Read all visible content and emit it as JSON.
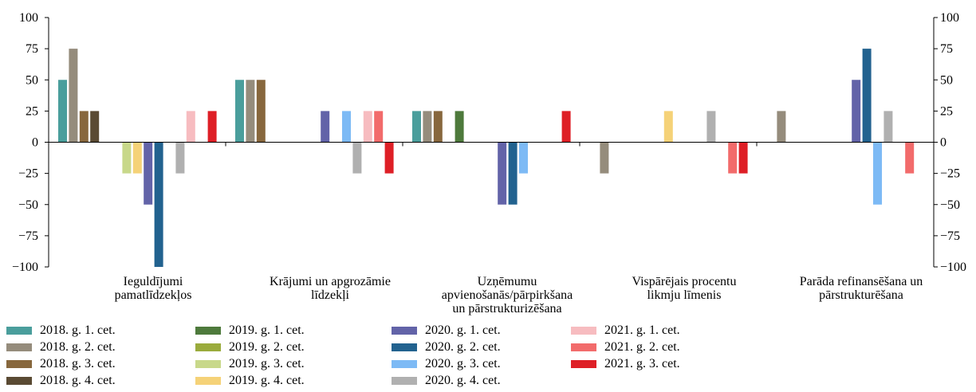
{
  "chart_data": {
    "type": "bar",
    "title": "",
    "xlabel": "",
    "ylabel": "",
    "ylim": [
      -100,
      100
    ],
    "yticks": [
      100,
      75,
      50,
      25,
      0,
      -25,
      -50,
      -75,
      -100
    ],
    "ytick_labels": [
      "100",
      "75",
      "50",
      "25",
      "0",
      "−25",
      "−50",
      "−75",
      "−100"
    ],
    "right_axis": true,
    "grid": false,
    "legend_position": "bottom",
    "categories": [
      [
        "Ieguldījumi",
        "pamatlīdzekļos"
      ],
      [
        "Krājumi un apgrozāmie",
        "līdzekļi"
      ],
      [
        "Uzņēmumu",
        "apvienošanās/pārpirkšana",
        "un pārstrukturizēšana"
      ],
      [
        "Vispārējais procentu",
        "likmju līmenis"
      ],
      [
        "Parāda refinansēšana un",
        "pārstrukturēšana"
      ]
    ],
    "series": [
      {
        "name": "2018. g. 1. cet.",
        "color": "#4a9e9c",
        "values": [
          50,
          50,
          25,
          0,
          0
        ]
      },
      {
        "name": "2018. g. 2. cet.",
        "color": "#958c7c",
        "values": [
          75,
          50,
          25,
          -25,
          25
        ]
      },
      {
        "name": "2018. g. 3. cet.",
        "color": "#87673d",
        "values": [
          25,
          50,
          25,
          0,
          0
        ]
      },
      {
        "name": "2018. g. 4. cet.",
        "color": "#5a4a33",
        "values": [
          25,
          0,
          0,
          0,
          0
        ]
      },
      {
        "name": "2019. g. 1. cet.",
        "color": "#4e7a3c",
        "values": [
          0,
          0,
          25,
          0,
          0
        ]
      },
      {
        "name": "2019. g. 2. cet.",
        "color": "#9aab3c",
        "values": [
          0,
          0,
          0,
          0,
          0
        ]
      },
      {
        "name": "2019. g. 3. cet.",
        "color": "#c8d88a",
        "values": [
          -25,
          0,
          0,
          0,
          0
        ]
      },
      {
        "name": "2019. g. 4. cet.",
        "color": "#f5d278",
        "values": [
          -25,
          0,
          0,
          25,
          0
        ]
      },
      {
        "name": "2020. g. 1. cet.",
        "color": "#6263a8",
        "values": [
          -50,
          25,
          -50,
          0,
          50
        ]
      },
      {
        "name": "2020. g. 2. cet.",
        "color": "#22628f",
        "values": [
          -100,
          0,
          -50,
          0,
          75
        ]
      },
      {
        "name": "2020. g. 3. cet.",
        "color": "#7dbaf5",
        "values": [
          0,
          25,
          -25,
          0,
          -50
        ]
      },
      {
        "name": "2020. g. 4. cet.",
        "color": "#b0b0b0",
        "values": [
          -25,
          -25,
          0,
          25,
          25
        ]
      },
      {
        "name": "2021. g. 1. cet.",
        "color": "#f7bcc0",
        "values": [
          25,
          25,
          0,
          0,
          0
        ]
      },
      {
        "name": "2021. g. 2. cet.",
        "color": "#f26b6b",
        "values": [
          0,
          25,
          0,
          -25,
          -25
        ]
      },
      {
        "name": "2021. g. 3. cet.",
        "color": "#de1f26",
        "values": [
          25,
          -25,
          25,
          -25,
          0
        ]
      }
    ]
  }
}
